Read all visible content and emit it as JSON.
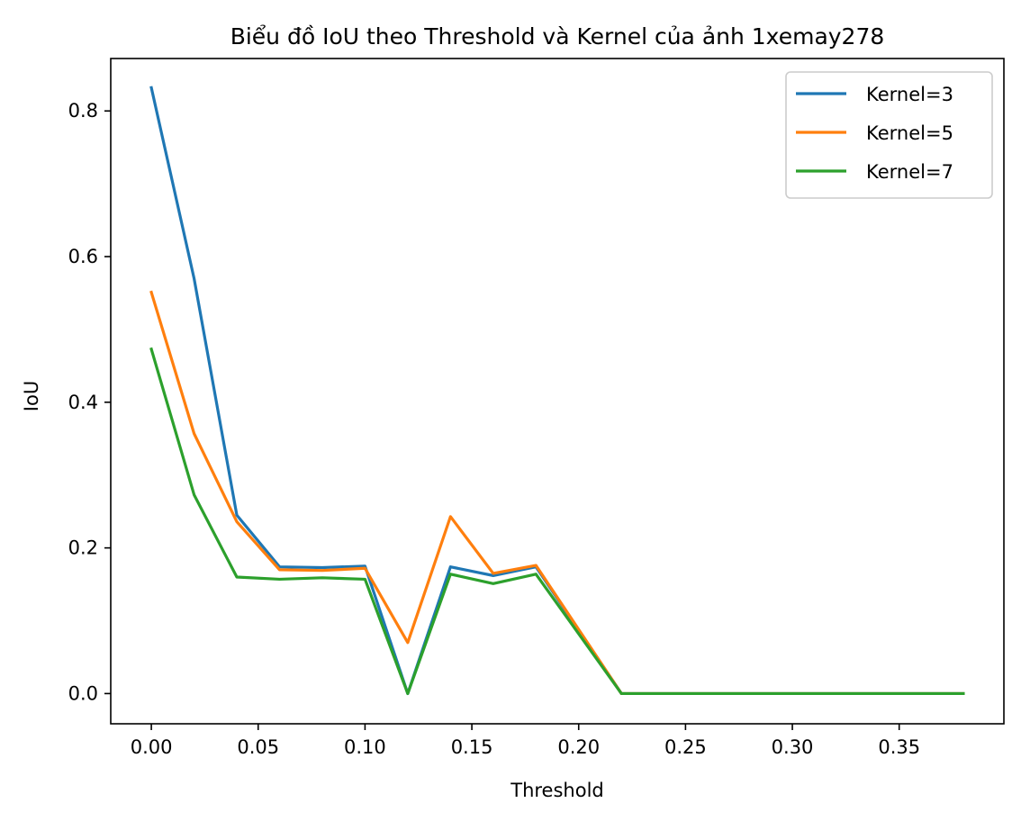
{
  "chart_data": {
    "type": "line",
    "title": "Biểu đồ IoU theo Threshold và Kernel của ảnh 1xemay278",
    "xlabel": "Threshold",
    "ylabel": "IoU",
    "xlim": [
      -0.019,
      0.399
    ],
    "ylim": [
      -0.0415,
      0.872
    ],
    "x_ticks": [
      0.0,
      0.05,
      0.1,
      0.15,
      0.2,
      0.25,
      0.3,
      0.35
    ],
    "x_tick_labels": [
      "0.00",
      "0.05",
      "0.10",
      "0.15",
      "0.20",
      "0.25",
      "0.30",
      "0.35"
    ],
    "y_ticks": [
      0.0,
      0.2,
      0.4,
      0.6,
      0.8
    ],
    "y_tick_labels": [
      "0.0",
      "0.2",
      "0.4",
      "0.6",
      "0.8"
    ],
    "grid": false,
    "legend_position": "top-right",
    "x": [
      0.0,
      0.02,
      0.04,
      0.06,
      0.08,
      0.1,
      0.12,
      0.14,
      0.16,
      0.18,
      0.2,
      0.22,
      0.24,
      0.26,
      0.28,
      0.3,
      0.32,
      0.34,
      0.36,
      0.38
    ],
    "series": [
      {
        "name": "Kernel=3",
        "color": "#1f77b4",
        "values": [
          0.832,
          0.57,
          0.245,
          0.174,
          0.173,
          0.175,
          0.0,
          0.174,
          0.162,
          0.174,
          0.087,
          0.0,
          0.0,
          0.0,
          0.0,
          0.0,
          0.0,
          0.0,
          0.0,
          0.0
        ]
      },
      {
        "name": "Kernel=5",
        "color": "#ff7f0e",
        "values": [
          0.551,
          0.357,
          0.236,
          0.17,
          0.169,
          0.172,
          0.07,
          0.243,
          0.165,
          0.176,
          0.088,
          0.0,
          0.0,
          0.0,
          0.0,
          0.0,
          0.0,
          0.0,
          0.0,
          0.0
        ]
      },
      {
        "name": "Kernel=7",
        "color": "#2ca02c",
        "values": [
          0.473,
          0.273,
          0.16,
          0.157,
          0.159,
          0.157,
          0.0,
          0.164,
          0.151,
          0.164,
          0.082,
          0.0,
          0.0,
          0.0,
          0.0,
          0.0,
          0.0,
          0.0,
          0.0,
          0.0
        ]
      }
    ]
  }
}
